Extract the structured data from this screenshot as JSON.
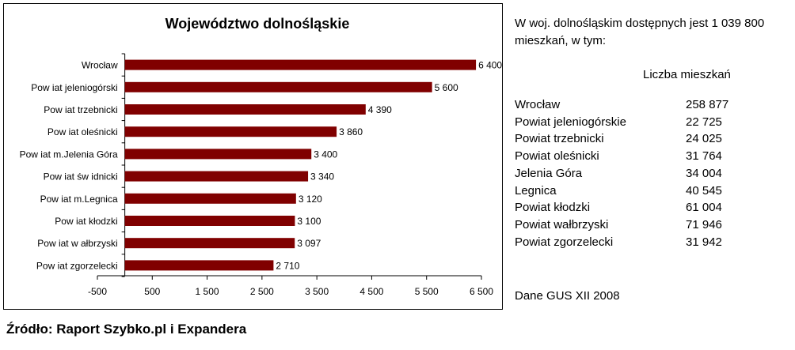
{
  "chart_data": {
    "type": "bar",
    "orientation": "horizontal",
    "title": "Województwo dolnośląskie",
    "categories": [
      "Wrocław",
      "Pow iat jeleniogórski",
      "Pow iat trzebnicki",
      "Pow iat oleśnicki",
      "Pow iat m.Jelenia Góra",
      "Pow iat św idnicki",
      "Pow iat m.Legnica",
      "Pow iat kłodzki",
      "Pow iat w ałbrzyski",
      "Pow iat zgorzelecki"
    ],
    "values": [
      6400,
      5600,
      4390,
      3860,
      3400,
      3340,
      3120,
      3100,
      3097,
      2710
    ],
    "value_labels": [
      "6 400",
      "5 600",
      "4 390",
      "3 860",
      "3 400",
      "3 340",
      "3 120",
      "3 100",
      "3 097",
      "2 710"
    ],
    "xlim": [
      -500,
      6500
    ],
    "xticks": [
      -500,
      500,
      1500,
      2500,
      3500,
      4500,
      5500,
      6500
    ],
    "xtick_labels": [
      "-500",
      "500",
      "1 500",
      "2 500",
      "3 500",
      "4 500",
      "5 500",
      "6 500"
    ],
    "bar_color": "#800000",
    "grid": false,
    "legend": "none"
  },
  "side": {
    "intro_line1": "W woj. dolnośląskim dostępnych jest 1 039 800",
    "intro_line2": "mieszkań, w tym:",
    "column_header": "Liczba mieszkań",
    "rows": [
      {
        "name": "Wrocław",
        "value": "258 877"
      },
      {
        "name": "Powiat jeleniogórskie",
        "value": "22 725"
      },
      {
        "name": "Powiat trzebnicki",
        "value": "24 025"
      },
      {
        "name": "Powiat oleśnicki",
        "value": "31 764"
      },
      {
        "name": "Jelenia Góra",
        "value": "34 004"
      },
      {
        "name": "Legnica",
        "value": "40 545"
      },
      {
        "name": "Powiat kłodzki",
        "value": "61 004"
      },
      {
        "name": "Powiat wałbrzyski",
        "value": "71 946"
      },
      {
        "name": "Powiat zgorzelecki",
        "value": "31 942"
      }
    ],
    "footer": "Dane GUS XII 2008"
  },
  "source": "Źródło: Raport Szybko.pl i Expandera"
}
